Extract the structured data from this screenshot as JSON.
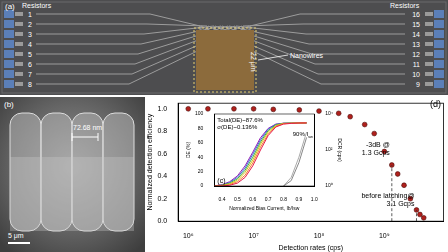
{
  "panels": {
    "a": {
      "label": "(a)",
      "pad_labels": [
        "1",
        "2",
        "3",
        "4",
        "5",
        "6",
        "7",
        "8",
        "9",
        "10",
        "11",
        "12",
        "13",
        "14",
        "15",
        "16"
      ],
      "resistors_label": "Resistors",
      "nanowires_label": "Nanowires",
      "scale": "22 μm"
    },
    "b": {
      "label": "(b)",
      "width_label": "72.68 nm",
      "scale": "5 μm"
    }
  },
  "chart_data": [
    {
      "panel_label": "(d)",
      "type": "scatter",
      "x_label": "Detection rates (cps)",
      "y_label": "Normalized detection efficiency",
      "log": "x",
      "grid": false,
      "x": [
        1000000,
        2000000,
        5000000,
        10000000,
        20000000,
        50000000,
        100000000,
        200000000,
        300000000,
        500000000,
        700000000,
        1000000000,
        1300000000,
        1600000000,
        2000000000,
        2500000000,
        3100000000,
        3500000000,
        4000000000
      ],
      "series": [
        {
          "color": "#b0201c",
          "marker": "circle",
          "values": [
            1.0,
            1.0,
            1.0,
            1.0,
            0.995,
            0.99,
            0.98,
            0.96,
            0.93,
            0.86,
            0.78,
            0.62,
            0.5,
            0.42,
            0.32,
            0.2,
            0.1,
            0.06,
            0.03
          ]
        }
      ],
      "xlim": [
        700000,
        8000000000
      ],
      "xticks": [
        {
          "value": 1000000,
          "label": "10⁶"
        },
        {
          "value": 10000000,
          "label": "10⁷"
        },
        {
          "value": 100000000,
          "label": "10⁸"
        },
        {
          "value": 1000000000,
          "label": "10⁹"
        }
      ],
      "ylim": [
        0,
        1.05
      ],
      "yticks": [
        {
          "value": 0,
          "label": "0.0"
        },
        {
          "value": 0.2,
          "label": "0.2"
        },
        {
          "value": 0.4,
          "label": "0.4"
        },
        {
          "value": 0.6,
          "label": "0.6"
        },
        {
          "value": 0.8,
          "label": "0.8"
        },
        {
          "value": 1,
          "label": "1.0"
        }
      ],
      "annotations": [
        {
          "x": 1300000000,
          "y": 0.5,
          "lines": [
            "-3dB @",
            "1.3 Gcps"
          ]
        },
        {
          "x": 3100000000,
          "y": 0.1,
          "lines": [
            "before latching@",
            "3.1 Gcps"
          ]
        }
      ]
    },
    {
      "panel_label": "(c)",
      "type": "line",
      "x_label": "Normalized Bias Current, Ib/Isw",
      "y_label": "DE (%)",
      "y2_label": "DCR (cps)",
      "log": "y2",
      "grid": false,
      "x": [
        0.35,
        0.4,
        0.45,
        0.5,
        0.55,
        0.6,
        0.65,
        0.7,
        0.75,
        0.8,
        0.85,
        0.9,
        0.95
      ],
      "series": [
        {
          "color": "#e6194b",
          "values": [
            0,
            0,
            1,
            4,
            12,
            28,
            50,
            70,
            82,
            86,
            87,
            87.5,
            87.6
          ]
        },
        {
          "color": "#f58231",
          "values": [
            0,
            0,
            2,
            6,
            15,
            32,
            54,
            72,
            83,
            86.5,
            87.2,
            87.5,
            87.6
          ]
        },
        {
          "color": "#d4c21a",
          "values": [
            0,
            1,
            3,
            8,
            19,
            36,
            58,
            75,
            84,
            87,
            87.3,
            87.5,
            87.6
          ]
        },
        {
          "color": "#3cb44b",
          "values": [
            0,
            1,
            4,
            10,
            22,
            40,
            61,
            77,
            85,
            87,
            87.4,
            87.5,
            87.6
          ]
        },
        {
          "color": "#4363d8",
          "values": [
            0,
            1,
            5,
            12,
            25,
            44,
            64,
            79,
            85.5,
            87.2,
            87.4,
            87.5,
            87.6
          ]
        },
        {
          "color": "#911eb4",
          "values": [
            0,
            2,
            6,
            14,
            28,
            47,
            67,
            80,
            86,
            87.2,
            87.5,
            87.6,
            87.6
          ]
        },
        {
          "color": "#888888",
          "axis": "y2",
          "values": [
            null,
            null,
            null,
            null,
            null,
            null,
            null,
            null,
            null,
            1,
            2,
            20,
            500
          ]
        },
        {
          "color": "#aaaaaa",
          "axis": "y2",
          "values": [
            null,
            null,
            null,
            null,
            null,
            null,
            null,
            null,
            null,
            1,
            3,
            40,
            1000
          ]
        }
      ],
      "xlim": [
        0.35,
        1.0
      ],
      "xticks": [
        0.4,
        0.5,
        0.6,
        0.7,
        0.8,
        0.9,
        {
          "value": 1.0,
          "label": "1.0"
        }
      ],
      "ylim": [
        0,
        100
      ],
      "yticks": [
        0,
        20,
        40,
        60,
        80,
        100
      ],
      "y2lim": [
        1,
        10000
      ],
      "y2ticks": [
        {
          "value": 1,
          "label": "10⁰"
        },
        {
          "value": 100,
          "label": "10²"
        },
        {
          "value": 10000,
          "label": "10⁴"
        }
      ],
      "annotations_text": [
        "Total(DE)~87.6%",
        "σ(DE)~0.136%"
      ],
      "marker_text": {
        "text": "90% I",
        "sub": "sw"
      }
    }
  ]
}
